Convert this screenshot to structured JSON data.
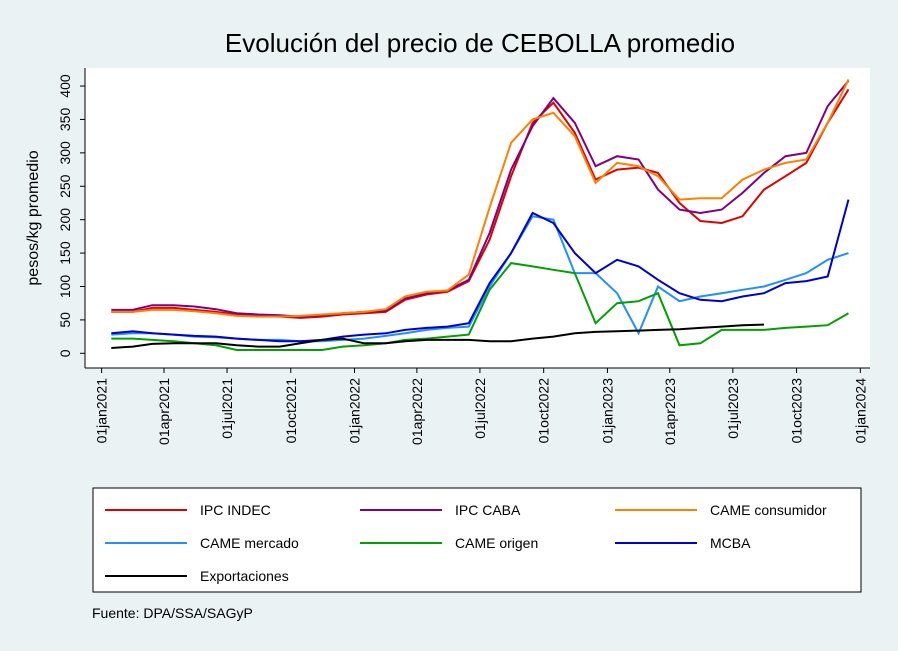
{
  "chart_data": {
    "type": "line",
    "title": "Evolución del precio de CEBOLLA promedio",
    "y_label": "pesos/kg promedio",
    "source": "Fuente: DPA/SSA/SAGyP",
    "x": [
      "2021-01-15",
      "2021-02-15",
      "2021-03-15",
      "2021-04-15",
      "2021-05-15",
      "2021-06-15",
      "2021-07-15",
      "2021-08-15",
      "2021-09-15",
      "2021-10-15",
      "2021-11-15",
      "2021-12-15",
      "2022-01-15",
      "2022-02-15",
      "2022-03-15",
      "2022-04-15",
      "2022-05-15",
      "2022-06-15",
      "2022-07-15",
      "2022-08-15",
      "2022-09-15",
      "2022-10-15",
      "2022-11-15",
      "2022-12-15",
      "2023-01-15",
      "2023-02-15",
      "2023-03-15",
      "2023-04-15",
      "2023-05-15",
      "2023-06-15",
      "2023-07-15",
      "2023-08-15",
      "2023-09-15",
      "2023-10-15",
      "2023-11-15",
      "2023-12-15"
    ],
    "series": [
      {
        "name": "IPC INDEC",
        "color": "#e00000",
        "values": [
          62,
          62,
          68,
          68,
          65,
          62,
          58,
          56,
          55,
          53,
          55,
          58,
          60,
          62,
          80,
          88,
          92,
          108,
          170,
          265,
          345,
          375,
          330,
          260,
          275,
          278,
          270,
          225,
          198,
          195,
          205,
          245,
          265,
          285,
          345,
          395
        ]
      },
      {
        "name": "IPC CABA",
        "color": "#800080",
        "values": [
          65,
          65,
          72,
          72,
          70,
          66,
          60,
          58,
          57,
          55,
          57,
          60,
          62,
          64,
          82,
          90,
          94,
          110,
          180,
          275,
          340,
          382,
          345,
          280,
          295,
          290,
          245,
          215,
          210,
          215,
          240,
          270,
          295,
          300,
          370,
          408
        ]
      },
      {
        "name": "CAME consumidor",
        "color": "#ff8000",
        "values": [
          62,
          62,
          65,
          65,
          63,
          60,
          56,
          55,
          55,
          56,
          58,
          60,
          62,
          66,
          85,
          92,
          94,
          118,
          218,
          315,
          350,
          360,
          325,
          255,
          285,
          280,
          265,
          230,
          232,
          232,
          260,
          275,
          285,
          290,
          345,
          410
        ]
      },
      {
        "name": "CAME mercado",
        "color": "#1e90ff",
        "values": [
          28,
          30,
          30,
          28,
          25,
          24,
          22,
          20,
          20,
          18,
          18,
          20,
          22,
          26,
          30,
          35,
          38,
          40,
          100,
          150,
          205,
          200,
          120,
          120,
          90,
          30,
          100,
          78,
          85,
          90,
          95,
          100,
          110,
          120,
          140,
          150
        ]
      },
      {
        "name": "CAME origen",
        "color": "#00a000",
        "values": [
          22,
          22,
          20,
          18,
          15,
          12,
          5,
          5,
          5,
          5,
          5,
          10,
          12,
          15,
          20,
          22,
          25,
          28,
          95,
          135,
          130,
          125,
          120,
          45,
          75,
          78,
          90,
          12,
          15,
          35,
          35,
          35,
          38,
          40,
          42,
          60
        ]
      },
      {
        "name": "MCBA",
        "color": "#0000d0",
        "values": [
          30,
          33,
          30,
          28,
          26,
          25,
          22,
          20,
          18,
          18,
          20,
          25,
          28,
          30,
          35,
          38,
          40,
          45,
          105,
          150,
          210,
          195,
          150,
          120,
          140,
          130,
          110,
          90,
          80,
          78,
          85,
          90,
          105,
          108,
          115,
          230
        ]
      },
      {
        "name": "Exportaciones",
        "color": "#000000",
        "values": [
          8,
          10,
          14,
          15,
          15,
          15,
          12,
          10,
          10,
          15,
          20,
          22,
          15,
          15,
          18,
          20,
          20,
          20,
          18,
          18,
          22,
          25,
          30,
          32,
          33,
          34,
          35,
          36,
          38,
          40,
          42,
          43,
          null,
          null,
          null,
          null
        ]
      }
    ],
    "xlim": [
      "2020-12-08",
      "2024-01-15"
    ],
    "xticks": [
      {
        "value": "2021-01-01",
        "label": "01jan2021"
      },
      {
        "value": "2021-04-01",
        "label": "01apr2021"
      },
      {
        "value": "2021-07-01",
        "label": "01jul2021"
      },
      {
        "value": "2021-10-01",
        "label": "01oct2021"
      },
      {
        "value": "2022-01-01",
        "label": "01jan2022"
      },
      {
        "value": "2022-04-01",
        "label": "01apr2022"
      },
      {
        "value": "2022-07-01",
        "label": "01jul2022"
      },
      {
        "value": "2022-10-01",
        "label": "01oct2022"
      },
      {
        "value": "2023-01-01",
        "label": "01jan2023"
      },
      {
        "value": "2023-04-01",
        "label": "01apr2023"
      },
      {
        "value": "2023-07-01",
        "label": "01jul2023"
      },
      {
        "value": "2023-10-01",
        "label": "01oct2023"
      },
      {
        "value": "2024-01-01",
        "label": "01jan2024"
      }
    ],
    "ylim": [
      -22,
      427
    ],
    "yticks": [
      0,
      50,
      100,
      150,
      200,
      250,
      300,
      350,
      400
    ],
    "legend": "bottom"
  }
}
